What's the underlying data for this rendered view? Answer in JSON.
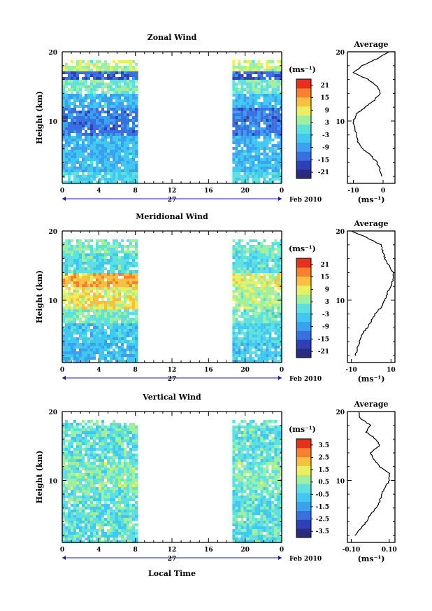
{
  "date_label": "Feb 2010",
  "day_label": "27",
  "xlabel": "Local Time",
  "ylabel": "Height (km)",
  "avg_title": "Average",
  "unit_label": "(ms⁻¹)",
  "x_ticks": [
    "0",
    "4",
    "8",
    "12",
    "16",
    "20",
    "0"
  ],
  "y_ticks": [
    "20",
    "10"
  ],
  "colors": {
    "scale": [
      "#2a2a80",
      "#2f3fb8",
      "#3a6fe0",
      "#3aa0f0",
      "#40c8f0",
      "#5fe0e0",
      "#9ef0a0",
      "#e8ef60",
      "#f8c040",
      "#f88030",
      "#e83020"
    ]
  },
  "chart_data": [
    {
      "type": "heatmap",
      "title": "Zonal Wind",
      "colorbar_ticks": [
        "21",
        "15",
        "9",
        "3",
        "-3",
        "-9",
        "-15",
        "-21"
      ],
      "colorbar_range": [
        -24,
        24
      ],
      "x_range": [
        0,
        24
      ],
      "y_range": [
        1,
        20
      ],
      "data_segments": [
        [
          0,
          8.3
        ],
        [
          18.6,
          24
        ]
      ],
      "profile": {
        "title": "Average",
        "x_ticks": [
          "-10",
          "0"
        ],
        "x_range": [
          -12,
          4
        ],
        "heights": [
          2,
          3,
          4,
          5,
          6,
          7,
          8,
          9,
          10,
          11,
          12,
          13,
          14,
          15,
          16,
          17,
          18,
          19,
          20
        ],
        "values": [
          -0.5,
          -1,
          -2,
          -4,
          -7,
          -8.5,
          -9,
          -9.5,
          -10,
          -9,
          -6,
          -3,
          -1,
          -2,
          -5,
          -10,
          -7,
          -2,
          2
        ]
      }
    },
    {
      "type": "heatmap",
      "title": "Meridional Wind",
      "colorbar_ticks": [
        "21",
        "15",
        "9",
        "3",
        "-3",
        "-9",
        "-15",
        "-21"
      ],
      "colorbar_range": [
        -24,
        24
      ],
      "x_range": [
        0,
        24
      ],
      "y_range": [
        1,
        20
      ],
      "data_segments": [
        [
          0,
          8.3
        ],
        [
          18.6,
          24
        ]
      ],
      "profile": {
        "title": "Average",
        "x_ticks": [
          "-10",
          "10"
        ],
        "x_range": [
          -12,
          12
        ],
        "heights": [
          2,
          3,
          4,
          5,
          6,
          7,
          8,
          9,
          10,
          11,
          12,
          13,
          14,
          15,
          16,
          17,
          18,
          19,
          20
        ],
        "values": [
          -8,
          -7,
          -6,
          -5,
          -2,
          0,
          2,
          5,
          7,
          8,
          10,
          11,
          11,
          9,
          7,
          6,
          5,
          -2,
          -10
        ]
      }
    },
    {
      "type": "heatmap",
      "title": "Vertical Wind",
      "colorbar_ticks": [
        "3.5",
        "2.5",
        "1.5",
        "0.5",
        "-0.5",
        "-1.5",
        "-2.5",
        "-3.5"
      ],
      "colorbar_range": [
        -4,
        4
      ],
      "x_range": [
        0,
        24
      ],
      "y_range": [
        1,
        20
      ],
      "data_segments": [
        [
          0,
          8.3
        ],
        [
          18.6,
          24
        ]
      ],
      "profile": {
        "title": "Average",
        "x_ticks": [
          "-0.10",
          "0.10"
        ],
        "x_range": [
          -0.12,
          0.13
        ],
        "heights": [
          2,
          3,
          4,
          5,
          6,
          7,
          8,
          9,
          10,
          11,
          12,
          13,
          14,
          15,
          16,
          17,
          18,
          19,
          20
        ],
        "values": [
          -0.08,
          -0.05,
          -0.02,
          0.0,
          0.03,
          0.05,
          0.06,
          0.08,
          0.1,
          0.1,
          0.05,
          0.02,
          0.0,
          0.05,
          0.03,
          -0.02,
          0.0,
          -0.05,
          -0.06
        ]
      }
    }
  ]
}
